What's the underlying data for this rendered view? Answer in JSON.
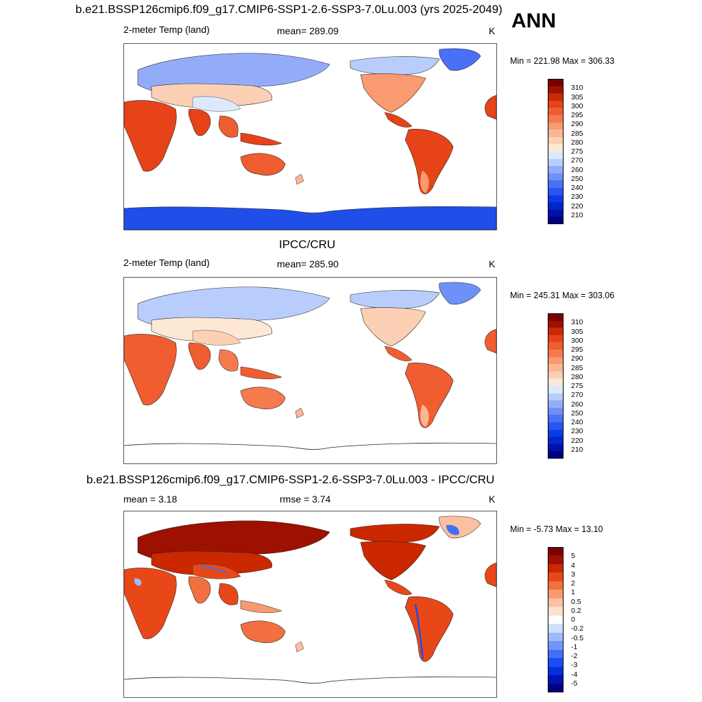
{
  "header": {
    "title": "b.e21.BSSP126cmip6.f09_g17.CMIP6-SSP1-2.6-SSP3-7.0Lu.003 (yrs 2025-2049)",
    "season": "ANN"
  },
  "colors": {
    "temp_scale": [
      "#000080",
      "#0010a8",
      "#0028c8",
      "#0a3ce6",
      "#2a55f0",
      "#4a70f5",
      "#6f90f8",
      "#93acfa",
      "#b9cdfc",
      "#dce9fd",
      "#fde8d6",
      "#fcd0b5",
      "#fbb694",
      "#f99a70",
      "#f67a4e",
      "#f05d30",
      "#e64318",
      "#c82a06",
      "#9e1200",
      "#7a0000"
    ],
    "diff_scale": [
      "#000080",
      "#0012b0",
      "#0030d8",
      "#1a4cf0",
      "#4070f5",
      "#7096f8",
      "#9fbafb",
      "#cfdffd",
      "#ffffff",
      "#fde0cc",
      "#fbc0a0",
      "#f79a70",
      "#f27040",
      "#e84818",
      "#cc2800",
      "#9e1000",
      "#800000"
    ]
  },
  "panels": [
    {
      "id": "model",
      "title": "",
      "variable": "2-meter Temp (land)",
      "stat": "mean= 289.09",
      "units": "K",
      "minmax": "Min = 221.98 Max = 306.33"
    },
    {
      "id": "obs",
      "title": "IPCC/CRU",
      "variable": "2-meter Temp (land)",
      "stat": "mean= 285.90",
      "units": "K",
      "minmax": "Min = 245.31 Max = 303.06"
    },
    {
      "id": "diff",
      "title": "b.e21.BSSP126cmip6.f09_g17.CMIP6-SSP1-2.6-SSP3-7.0Lu.003 - IPCC/CRU",
      "variable": "mean =   3.18",
      "stat": "rmse =   3.74",
      "units": "K",
      "minmax": "Min =  -5.73 Max =  13.10"
    }
  ],
  "chart_data": [
    {
      "type": "heatmap",
      "title": "b.e21.BSSP126cmip6.f09_g17.CMIP6-SSP1-2.6-SSP3-7.0Lu.003 (yrs 2025-2049)",
      "variable": "2-meter Temp (land)",
      "units": "K",
      "mean": 289.09,
      "min": 221.98,
      "max": 306.33,
      "colorbar_levels": [
        310,
        305,
        300,
        295,
        290,
        285,
        280,
        275,
        270,
        260,
        250,
        240,
        230,
        220,
        210
      ]
    },
    {
      "type": "heatmap",
      "title": "IPCC/CRU",
      "variable": "2-meter Temp (land)",
      "units": "K",
      "mean": 285.9,
      "min": 245.31,
      "max": 303.06,
      "colorbar_levels": [
        310,
        305,
        300,
        295,
        290,
        285,
        280,
        275,
        270,
        260,
        250,
        240,
        230,
        220,
        210
      ]
    },
    {
      "type": "heatmap",
      "title": "b.e21.BSSP126cmip6.f09_g17.CMIP6-SSP1-2.6-SSP3-7.0Lu.003 - IPCC/CRU",
      "units": "K",
      "mean": 3.18,
      "rmse": 3.74,
      "min": -5.73,
      "max": 13.1,
      "colorbar_levels": [
        "5",
        "4",
        "3",
        "2",
        "1",
        "0.5",
        "0.2",
        "0",
        "-0.2",
        "-0.5",
        "-1",
        "-2",
        "-3",
        "-4",
        "-5"
      ]
    }
  ]
}
